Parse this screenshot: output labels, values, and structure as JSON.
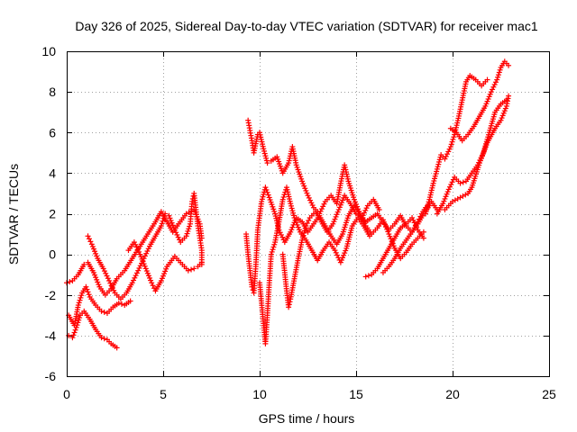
{
  "chart_data": {
    "type": "scatter",
    "title": "Day 326 of 2025, Sidereal Day-to-day VTEC variation (SDTVAR) for receiver mac1",
    "xlabel": "GPS time / hours",
    "ylabel": "SDTVAR / TECUs",
    "xlim": [
      0,
      25
    ],
    "ylim": [
      -6,
      10
    ],
    "x_ticks": [
      0,
      5,
      10,
      15,
      20,
      25
    ],
    "x_tick_labels": [
      "0",
      "5",
      "10",
      "15",
      "20",
      "25"
    ],
    "y_ticks": [
      -6,
      -4,
      -2,
      0,
      2,
      4,
      6,
      8,
      10
    ],
    "y_tick_labels": [
      "-6",
      "-4",
      "-2",
      "0",
      "2",
      "4",
      "6",
      "8",
      "10"
    ],
    "grid": true,
    "marker": "+",
    "color": "#ff0000",
    "series": [
      {
        "name": "track-1",
        "points": [
          [
            0.0,
            -1.4
          ],
          [
            0.3,
            -1.3
          ],
          [
            0.6,
            -1.0
          ],
          [
            0.9,
            -0.5
          ],
          [
            1.1,
            -0.4
          ],
          [
            1.4,
            -0.9
          ],
          [
            1.7,
            -1.6
          ],
          [
            2.0,
            -2.0
          ],
          [
            2.3,
            -1.7
          ],
          [
            2.6,
            -1.2
          ],
          [
            3.0,
            -0.8
          ],
          [
            3.4,
            -0.2
          ],
          [
            3.8,
            0.4
          ],
          [
            4.2,
            1.0
          ],
          [
            4.6,
            1.6
          ],
          [
            4.9,
            2.1
          ],
          [
            5.2,
            1.6
          ],
          [
            5.5,
            1.1
          ],
          [
            5.8,
            1.5
          ],
          [
            6.2,
            2.0
          ],
          [
            6.6,
            2.2
          ],
          [
            6.9,
            1.5
          ],
          [
            7.0,
            0.8
          ]
        ]
      },
      {
        "name": "track-2",
        "points": [
          [
            0.1,
            -3.0
          ],
          [
            0.4,
            -3.5
          ],
          [
            0.6,
            -2.5
          ],
          [
            0.8,
            -1.9
          ],
          [
            1.0,
            -1.6
          ],
          [
            1.2,
            -2.1
          ],
          [
            1.5,
            -2.5
          ],
          [
            1.8,
            -2.8
          ],
          [
            2.1,
            -2.9
          ],
          [
            2.4,
            -2.6
          ],
          [
            2.7,
            -2.4
          ],
          [
            3.0,
            -2.5
          ],
          [
            3.3,
            -2.3
          ]
        ]
      },
      {
        "name": "track-3",
        "points": [
          [
            0.1,
            -4.0
          ],
          [
            0.3,
            -4.1
          ],
          [
            0.5,
            -3.6
          ],
          [
            0.7,
            -3.0
          ],
          [
            0.9,
            -2.8
          ],
          [
            1.2,
            -3.2
          ],
          [
            1.5,
            -3.7
          ],
          [
            1.8,
            -4.1
          ],
          [
            2.1,
            -4.2
          ],
          [
            2.3,
            -4.4
          ],
          [
            2.6,
            -4.6
          ]
        ]
      },
      {
        "name": "track-4",
        "points": [
          [
            1.1,
            0.9
          ],
          [
            1.3,
            0.5
          ],
          [
            1.6,
            -0.2
          ],
          [
            1.9,
            -0.7
          ],
          [
            2.2,
            -1.3
          ],
          [
            2.5,
            -1.9
          ],
          [
            2.8,
            -2.2
          ],
          [
            3.1,
            -1.9
          ],
          [
            3.4,
            -1.4
          ],
          [
            3.7,
            -0.8
          ],
          [
            4.0,
            -0.2
          ],
          [
            4.3,
            0.4
          ],
          [
            4.6,
            0.9
          ],
          [
            4.9,
            1.4
          ],
          [
            5.1,
            2.0
          ]
        ]
      },
      {
        "name": "track-5",
        "points": [
          [
            3.2,
            0.2
          ],
          [
            3.5,
            0.6
          ],
          [
            3.8,
            0.0
          ],
          [
            4.1,
            -0.7
          ],
          [
            4.4,
            -1.4
          ],
          [
            4.6,
            -1.8
          ],
          [
            4.9,
            -1.3
          ],
          [
            5.2,
            -0.6
          ],
          [
            5.6,
            -0.1
          ],
          [
            6.0,
            -0.5
          ],
          [
            6.3,
            -0.8
          ],
          [
            6.6,
            -0.7
          ],
          [
            6.8,
            -0.6
          ],
          [
            7.0,
            -0.4
          ]
        ]
      },
      {
        "name": "track-6",
        "points": [
          [
            5.3,
            1.9
          ],
          [
            5.6,
            1.2
          ],
          [
            5.9,
            0.6
          ],
          [
            6.2,
            0.9
          ],
          [
            6.4,
            1.5
          ],
          [
            6.5,
            2.6
          ],
          [
            6.6,
            3.0
          ],
          [
            6.8,
            1.4
          ],
          [
            7.0,
            0.2
          ],
          [
            7.0,
            -0.5
          ]
        ]
      },
      {
        "name": "track-7",
        "points": [
          [
            9.4,
            6.6
          ],
          [
            9.5,
            6.1
          ],
          [
            9.6,
            5.6
          ],
          [
            9.7,
            5.0
          ],
          [
            9.9,
            5.9
          ],
          [
            10.0,
            6.0
          ],
          [
            10.2,
            5.2
          ],
          [
            10.4,
            4.5
          ],
          [
            10.6,
            4.6
          ],
          [
            10.9,
            4.8
          ],
          [
            11.2,
            4.0
          ],
          [
            11.5,
            4.5
          ],
          [
            11.7,
            5.3
          ],
          [
            11.9,
            4.4
          ],
          [
            12.2,
            3.6
          ],
          [
            12.5,
            2.9
          ],
          [
            12.8,
            2.3
          ],
          [
            13.1,
            2.0
          ],
          [
            13.4,
            2.6
          ],
          [
            13.7,
            2.9
          ],
          [
            14.0,
            2.5
          ],
          [
            14.2,
            3.5
          ],
          [
            14.4,
            4.4
          ],
          [
            14.6,
            3.6
          ],
          [
            14.9,
            2.7
          ],
          [
            15.2,
            2.0
          ],
          [
            15.5,
            1.6
          ],
          [
            15.8,
            1.8
          ],
          [
            16.1,
            2.0
          ],
          [
            16.4,
            1.6
          ],
          [
            16.7,
            1.2
          ],
          [
            17.0,
            1.5
          ],
          [
            17.3,
            1.9
          ],
          [
            17.6,
            1.4
          ],
          [
            17.9,
            1.1
          ],
          [
            18.2,
            1.5
          ],
          [
            18.5,
            2.0
          ],
          [
            18.8,
            2.4
          ]
        ]
      },
      {
        "name": "track-8",
        "points": [
          [
            9.3,
            1.0
          ],
          [
            9.4,
            0.0
          ],
          [
            9.5,
            -0.8
          ],
          [
            9.6,
            -1.6
          ],
          [
            9.7,
            -1.9
          ],
          [
            9.8,
            -0.6
          ],
          [
            9.9,
            1.2
          ],
          [
            10.1,
            2.6
          ],
          [
            10.3,
            3.3
          ],
          [
            10.5,
            2.8
          ],
          [
            10.8,
            2.0
          ],
          [
            11.0,
            1.2
          ],
          [
            11.3,
            0.6
          ],
          [
            11.6,
            1.1
          ],
          [
            11.9,
            1.8
          ],
          [
            12.2,
            1.6
          ],
          [
            12.5,
            1.1
          ],
          [
            12.8,
            1.5
          ],
          [
            13.1,
            1.9
          ],
          [
            13.4,
            1.4
          ],
          [
            13.7,
            0.9
          ],
          [
            14.0,
            0.5
          ],
          [
            14.3,
            1.0
          ],
          [
            14.6,
            1.9
          ],
          [
            14.9,
            2.4
          ],
          [
            15.2,
            2.0
          ],
          [
            15.5,
            1.4
          ],
          [
            15.8,
            1.0
          ],
          [
            16.1,
            1.3
          ],
          [
            16.4,
            1.7
          ],
          [
            16.7,
            1.0
          ],
          [
            17.0,
            0.3
          ],
          [
            17.3,
            -0.2
          ],
          [
            17.6,
            0.1
          ],
          [
            17.9,
            0.5
          ],
          [
            18.2,
            0.8
          ],
          [
            18.5,
            1.1
          ]
        ]
      },
      {
        "name": "track-9",
        "points": [
          [
            10.0,
            -1.4
          ],
          [
            10.1,
            -2.4
          ],
          [
            10.2,
            -3.4
          ],
          [
            10.3,
            -4.4
          ],
          [
            10.4,
            -3.0
          ],
          [
            10.5,
            -1.4
          ],
          [
            10.6,
            0.0
          ],
          [
            10.8,
            0.6
          ],
          [
            11.0,
            1.6
          ],
          [
            11.2,
            2.7
          ],
          [
            11.4,
            3.3
          ],
          [
            11.6,
            2.5
          ],
          [
            11.8,
            1.8
          ],
          [
            12.1,
            1.1
          ],
          [
            12.4,
            0.7
          ],
          [
            12.7,
            0.2
          ],
          [
            13.0,
            -0.3
          ],
          [
            13.3,
            0.2
          ],
          [
            13.6,
            0.6
          ],
          [
            13.9,
            0.2
          ],
          [
            14.2,
            -0.4
          ],
          [
            14.5,
            0.3
          ],
          [
            14.8,
            1.4
          ],
          [
            15.1,
            1.8
          ],
          [
            15.4,
            1.4
          ],
          [
            15.7,
            0.9
          ]
        ]
      },
      {
        "name": "track-10",
        "points": [
          [
            11.2,
            0.0
          ],
          [
            11.3,
            -0.9
          ],
          [
            11.4,
            -1.8
          ],
          [
            11.5,
            -2.6
          ],
          [
            11.6,
            -2.2
          ],
          [
            11.8,
            -1.2
          ],
          [
            12.0,
            -0.2
          ],
          [
            12.2,
            0.7
          ],
          [
            12.4,
            1.4
          ],
          [
            12.6,
            1.8
          ],
          [
            12.9,
            2.1
          ],
          [
            13.2,
            1.6
          ],
          [
            13.5,
            1.1
          ],
          [
            13.8,
            1.5
          ],
          [
            14.1,
            2.2
          ],
          [
            14.4,
            2.9
          ],
          [
            14.7,
            2.5
          ],
          [
            15.0,
            2.0
          ],
          [
            15.3,
            1.8
          ],
          [
            15.6,
            2.4
          ],
          [
            15.9,
            2.7
          ],
          [
            16.2,
            2.2
          ]
        ]
      },
      {
        "name": "track-11",
        "points": [
          [
            15.5,
            -1.1
          ],
          [
            15.8,
            -1.0
          ],
          [
            16.1,
            -0.7
          ],
          [
            16.4,
            -0.2
          ],
          [
            16.7,
            0.3
          ],
          [
            17.0,
            0.8
          ],
          [
            17.3,
            1.3
          ],
          [
            17.6,
            1.5
          ],
          [
            17.9,
            1.8
          ],
          [
            18.2,
            1.2
          ],
          [
            18.5,
            0.8
          ]
        ]
      },
      {
        "name": "track-12",
        "points": [
          [
            16.4,
            -0.9
          ],
          [
            16.7,
            -0.6
          ],
          [
            17.0,
            -0.2
          ],
          [
            17.3,
            0.3
          ],
          [
            17.6,
            0.7
          ],
          [
            17.9,
            1.1
          ],
          [
            18.2,
            1.6
          ],
          [
            18.4,
            2.0
          ],
          [
            18.6,
            2.3
          ],
          [
            18.9,
            2.6
          ],
          [
            19.2,
            2.2
          ]
        ]
      },
      {
        "name": "track-13",
        "points": [
          [
            18.6,
            2.0
          ],
          [
            18.8,
            2.7
          ],
          [
            19.0,
            3.5
          ],
          [
            19.2,
            4.2
          ],
          [
            19.4,
            4.9
          ],
          [
            19.6,
            4.7
          ],
          [
            19.9,
            5.3
          ],
          [
            20.1,
            5.9
          ],
          [
            20.3,
            6.7
          ],
          [
            20.5,
            7.6
          ],
          [
            20.7,
            8.5
          ],
          [
            20.9,
            8.8
          ],
          [
            21.2,
            8.6
          ],
          [
            21.5,
            8.3
          ],
          [
            21.8,
            8.6
          ]
        ]
      },
      {
        "name": "track-14",
        "points": [
          [
            19.2,
            2.0
          ],
          [
            19.5,
            2.5
          ],
          [
            19.8,
            3.2
          ],
          [
            20.1,
            3.8
          ],
          [
            20.4,
            3.5
          ],
          [
            20.7,
            3.6
          ],
          [
            21.0,
            4.0
          ],
          [
            21.3,
            4.4
          ],
          [
            21.6,
            5.0
          ],
          [
            21.9,
            6.0
          ],
          [
            22.2,
            7.0
          ],
          [
            22.5,
            7.4
          ],
          [
            22.8,
            7.6
          ]
        ]
      },
      {
        "name": "track-15",
        "points": [
          [
            19.9,
            6.2
          ],
          [
            20.2,
            6.0
          ],
          [
            20.5,
            5.6
          ],
          [
            20.8,
            5.9
          ],
          [
            21.1,
            6.3
          ],
          [
            21.4,
            6.8
          ],
          [
            21.7,
            7.3
          ],
          [
            22.0,
            8.0
          ],
          [
            22.3,
            8.6
          ],
          [
            22.5,
            9.2
          ],
          [
            22.7,
            9.5
          ],
          [
            22.9,
            9.3
          ]
        ]
      },
      {
        "name": "track-16",
        "points": [
          [
            19.6,
            2.2
          ],
          [
            20.0,
            2.6
          ],
          [
            20.4,
            2.8
          ],
          [
            20.8,
            3.0
          ],
          [
            21.0,
            3.3
          ],
          [
            21.4,
            4.5
          ],
          [
            21.8,
            5.5
          ],
          [
            22.2,
            6.2
          ],
          [
            22.5,
            6.6
          ],
          [
            22.8,
            7.3
          ],
          [
            22.9,
            7.8
          ]
        ]
      }
    ]
  }
}
